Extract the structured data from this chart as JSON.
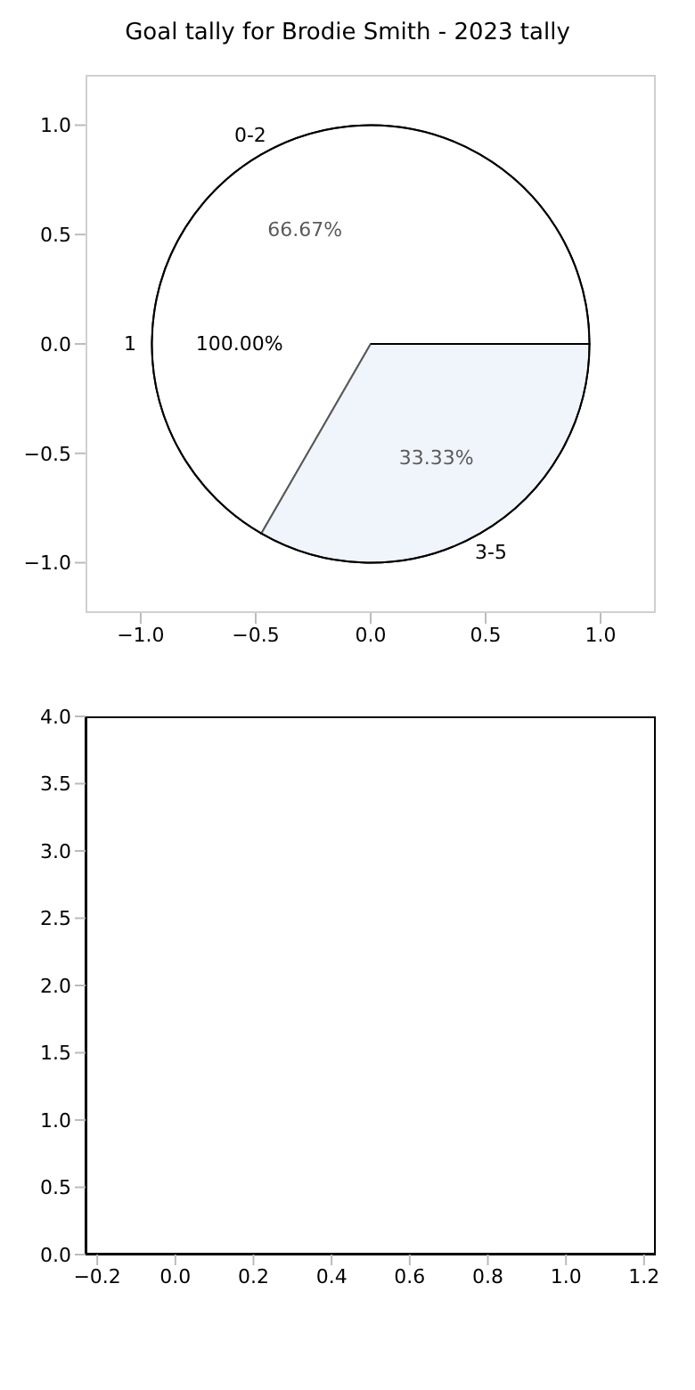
{
  "chart_data": [
    {
      "type": "scatter",
      "title": "Goal tally for Brodie Smith - 2023 tally",
      "xlim": [
        -1.24,
        1.24
      ],
      "ylim": [
        -1.23,
        1.23
      ],
      "xticks": [
        {
          "value": -1,
          "label": "−1.0"
        },
        {
          "value": -0.5,
          "label": "−0.5"
        },
        {
          "value": 0,
          "label": "0.0"
        },
        {
          "value": 0.5,
          "label": "0.5"
        },
        {
          "value": 1,
          "label": "1.0"
        }
      ],
      "yticks": [
        {
          "value": -1,
          "label": "−1.0"
        },
        {
          "value": -0.5,
          "label": "−0.5"
        },
        {
          "value": 0,
          "label": "0.0"
        },
        {
          "value": 0.5,
          "label": "0.5"
        },
        {
          "value": 1,
          "label": "1.0"
        }
      ]
    },
    {
      "type": "pie",
      "categories": [
        "1"
      ],
      "values": [
        100
      ],
      "colors": [
        "#ffffff"
      ],
      "value_labels": [
        "100.00%"
      ]
    },
    {
      "type": "pie",
      "categories": [
        "0-2",
        "3-5"
      ],
      "values": [
        66.67,
        33.33
      ],
      "colors": [
        "#ffffff",
        "#e8eef9"
      ],
      "value_labels": [
        "66.67%",
        "33.33%"
      ]
    },
    {
      "type": "scatter",
      "xlim": [
        -0.23,
        1.23
      ],
      "ylim": [
        0,
        4
      ],
      "xticks": [
        {
          "value": -0.2,
          "label": "−0.2"
        },
        {
          "value": 0,
          "label": "0.0"
        },
        {
          "value": 0.2,
          "label": "0.2"
        },
        {
          "value": 0.4,
          "label": "0.4"
        },
        {
          "value": 0.6,
          "label": "0.6"
        },
        {
          "value": 0.8,
          "label": "0.8"
        },
        {
          "value": 1,
          "label": "1.0"
        },
        {
          "value": 1.2,
          "label": "1.2"
        }
      ],
      "yticks": [
        {
          "value": 0,
          "label": "0.0"
        },
        {
          "value": 0.5,
          "label": "0.5"
        },
        {
          "value": 1,
          "label": "1.0"
        },
        {
          "value": 1.5,
          "label": "1.5"
        },
        {
          "value": 2,
          "label": "2.0"
        },
        {
          "value": 2.5,
          "label": "2.5"
        },
        {
          "value": 3,
          "label": "3.0"
        },
        {
          "value": 3.5,
          "label": "3.5"
        },
        {
          "value": 4,
          "label": "4.0"
        }
      ]
    }
  ]
}
